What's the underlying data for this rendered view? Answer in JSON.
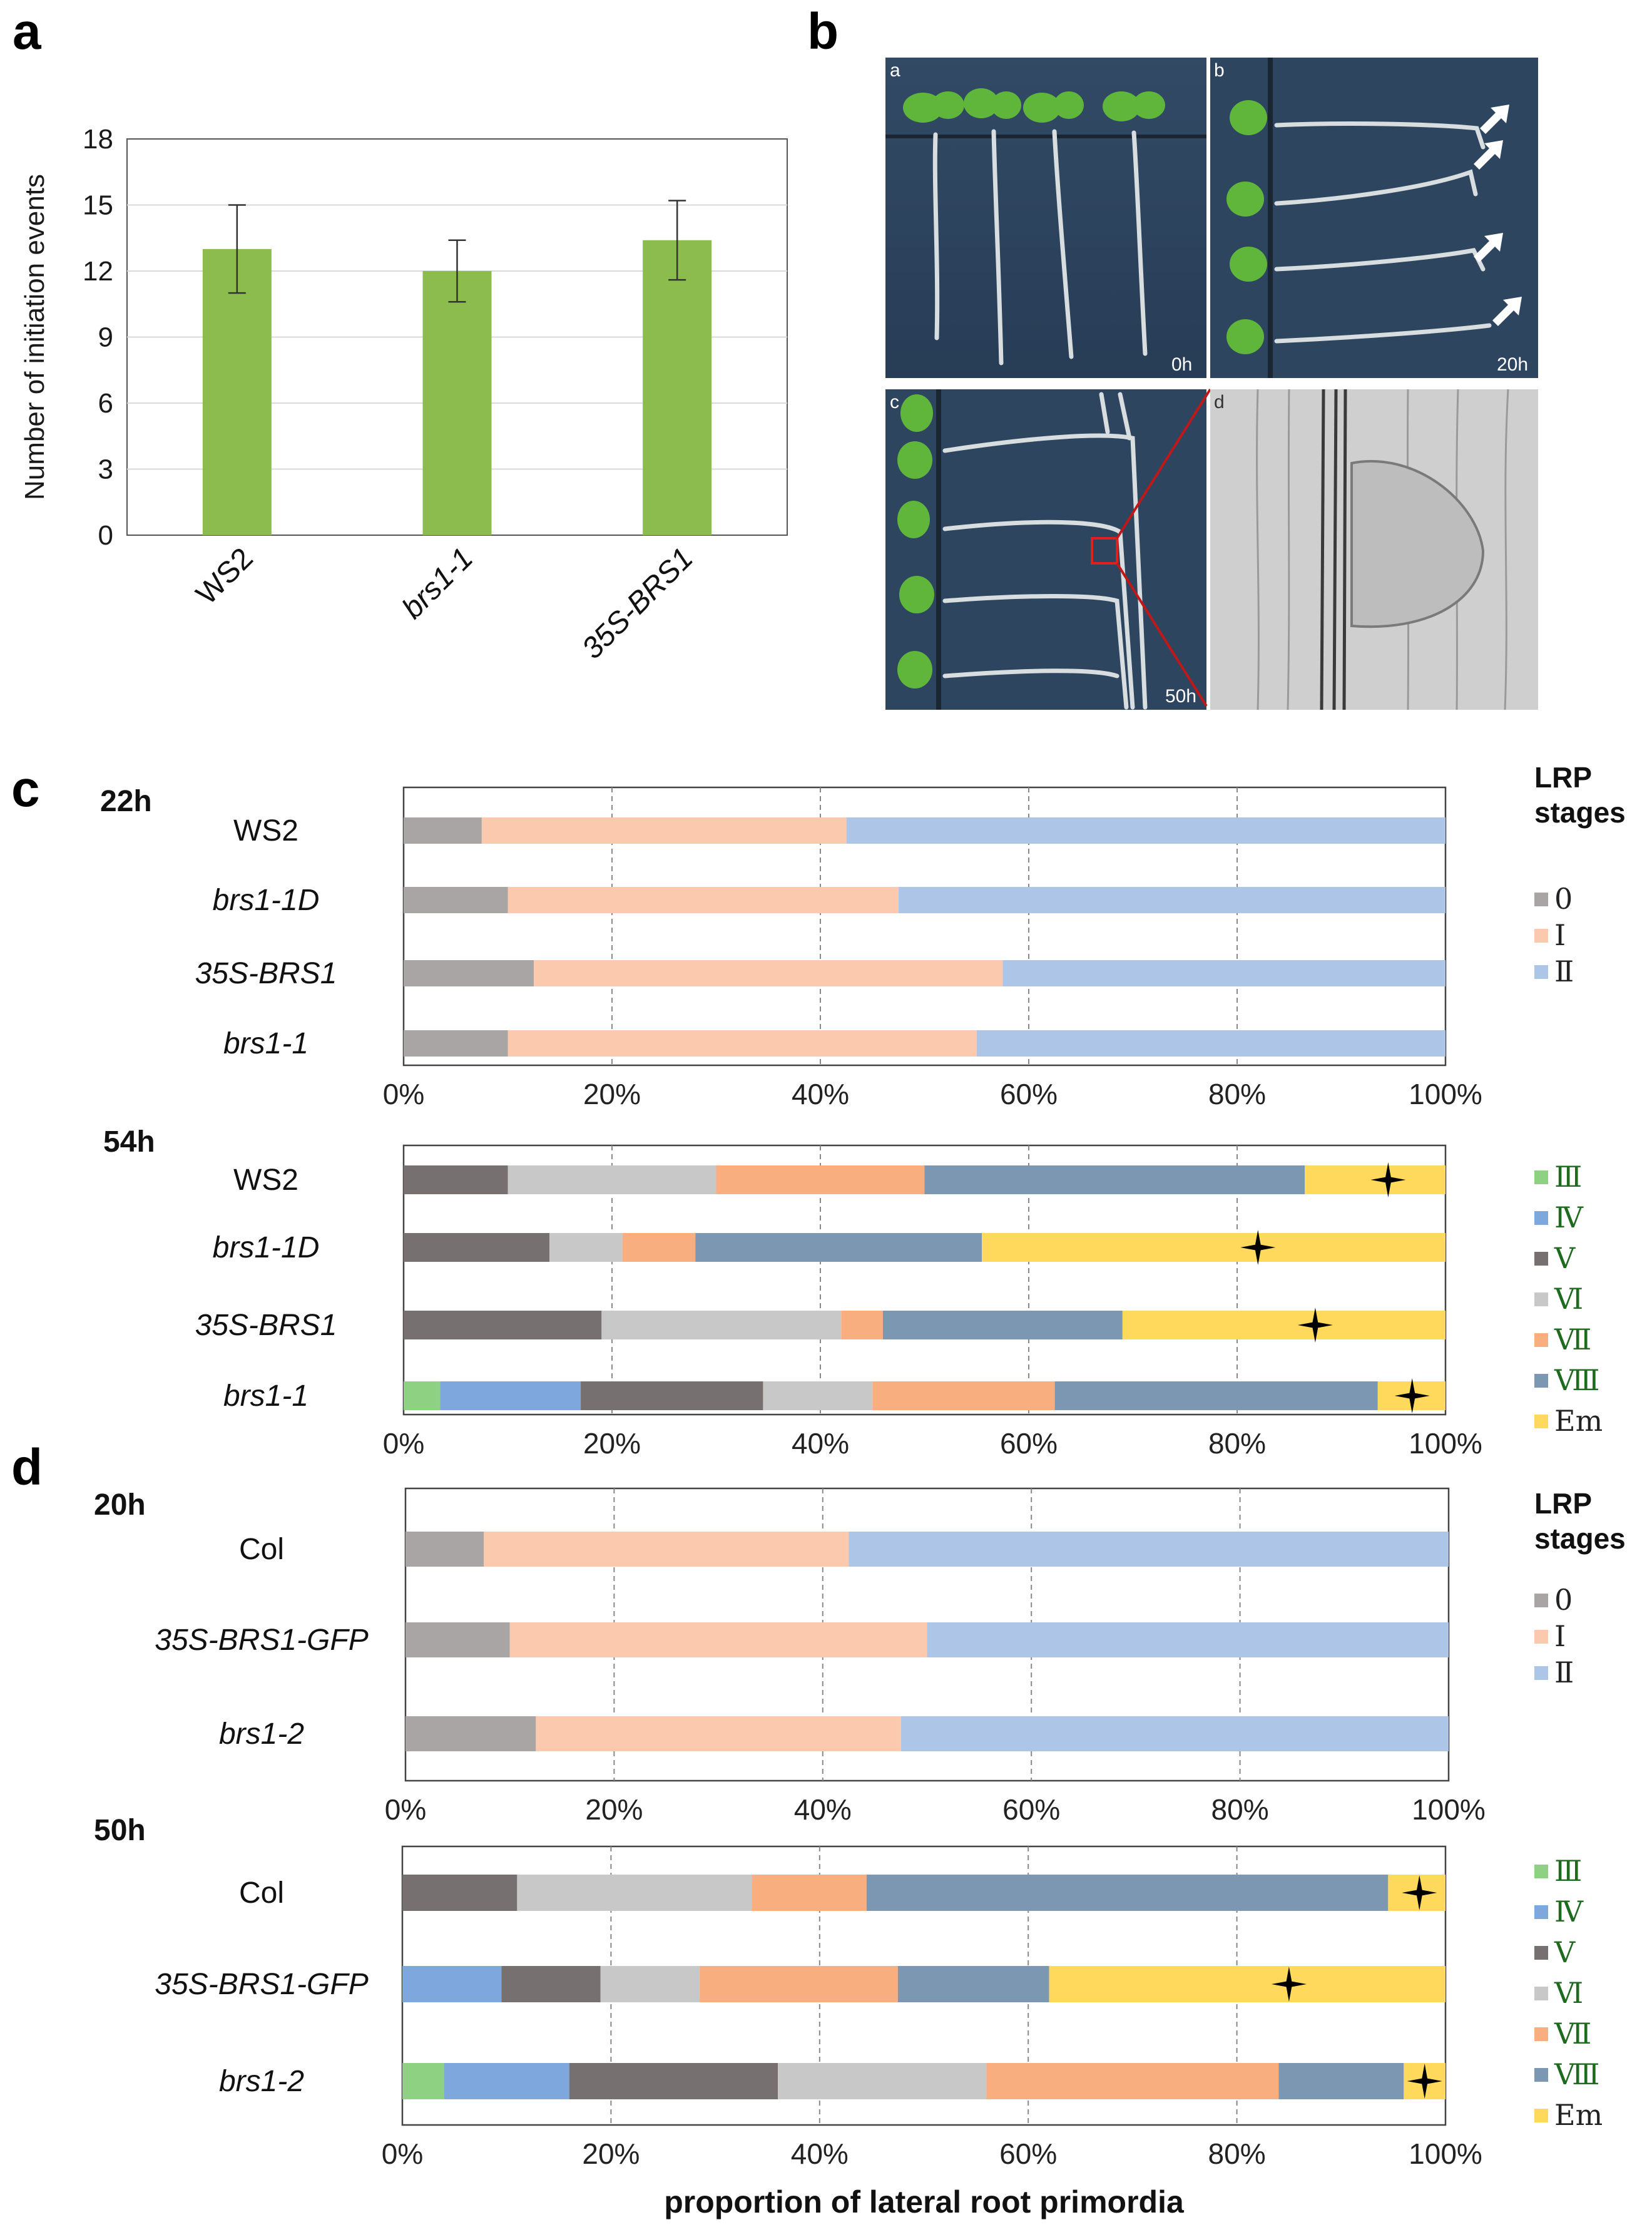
{
  "panel_labels": {
    "a": "a",
    "b": "b",
    "c": "c",
    "d": "d"
  },
  "chart_data": [
    {
      "id": "panel-a",
      "type": "bar",
      "ylabel": "Number of initiation events",
      "ylim": [
        0,
        18
      ],
      "yticks": [
        "0",
        "3",
        "6",
        "9",
        "12",
        "15",
        "18"
      ],
      "categories": [
        "WS2",
        "brs1-1",
        "35S-BRS1"
      ],
      "values": [
        13.0,
        12.0,
        13.4
      ],
      "errors": [
        2.0,
        1.4,
        1.8
      ],
      "bar_color": "#8cbc4e",
      "grid": true
    },
    {
      "id": "panel-c-22h",
      "type": "bar",
      "orientation": "horizontal-stacked",
      "time_label": "22h",
      "categories": [
        "WS2",
        "brs1-1D",
        "35S-BRS1",
        "brs1-1"
      ],
      "italic": [
        false,
        true,
        true,
        true
      ],
      "stages": [
        "0",
        "I",
        "II"
      ],
      "series": [
        {
          "name": "0",
          "color": "#a9a5a4",
          "values": [
            7.5,
            10,
            12.5,
            10
          ]
        },
        {
          "name": "I",
          "color": "#fbc9ad",
          "values": [
            35,
            37.5,
            45,
            45
          ]
        },
        {
          "name": "II",
          "color": "#adc6e8",
          "values": [
            57.5,
            52.5,
            42.5,
            45
          ]
        }
      ],
      "xticks": [
        "0%",
        "20%",
        "40%",
        "60%",
        "80%",
        "100%"
      ],
      "legend_title": [
        "LRP",
        "stages"
      ],
      "legend": [
        "0",
        "Ⅰ",
        "Ⅱ"
      ]
    },
    {
      "id": "panel-c-54h",
      "type": "bar",
      "orientation": "horizontal-stacked",
      "time_label": "54h",
      "categories": [
        "WS2",
        "brs1-1D",
        "35S-BRS1",
        "brs1-1"
      ],
      "italic": [
        false,
        true,
        true,
        true
      ],
      "series": [
        {
          "name": "III",
          "color": "#8ed183",
          "values": [
            0,
            0,
            0,
            3.5
          ]
        },
        {
          "name": "IV",
          "color": "#7ea7dd",
          "values": [
            0,
            0,
            0,
            13.5
          ]
        },
        {
          "name": "V",
          "color": "#777071",
          "values": [
            10,
            14,
            19,
            17.5
          ]
        },
        {
          "name": "VI",
          "color": "#c8c8c8",
          "values": [
            20,
            7,
            23,
            10.5
          ]
        },
        {
          "name": "VII",
          "color": "#f9ae80",
          "values": [
            20,
            7,
            4,
            17.5
          ]
        },
        {
          "name": "VIII",
          "color": "#7c97b2",
          "values": [
            36.5,
            27.5,
            23,
            31
          ]
        },
        {
          "name": "Em",
          "color": "#ffd95b",
          "values": [
            13.5,
            44.5,
            31,
            6.5
          ]
        }
      ],
      "star_positions_pct": [
        94.5,
        82,
        87.5,
        96.8
      ],
      "xticks": [
        "0%",
        "20%",
        "40%",
        "60%",
        "80%",
        "100%"
      ],
      "legend": [
        "Ⅲ",
        "Ⅳ",
        "Ⅴ",
        "Ⅵ",
        "Ⅶ",
        "Ⅷ",
        "Em"
      ]
    },
    {
      "id": "panel-d-20h",
      "type": "bar",
      "orientation": "horizontal-stacked",
      "time_label": "20h",
      "categories": [
        "Col",
        "35S-BRS1-GFP",
        "brs1-2"
      ],
      "italic": [
        false,
        true,
        true
      ],
      "series": [
        {
          "name": "0",
          "color": "#a9a5a4",
          "values": [
            7.5,
            10,
            12.5
          ]
        },
        {
          "name": "I",
          "color": "#fbc9ad",
          "values": [
            35,
            40,
            35
          ]
        },
        {
          "name": "II",
          "color": "#adc6e8",
          "values": [
            57.5,
            50,
            52.5
          ]
        }
      ],
      "xticks": [
        "0%",
        "20%",
        "40%",
        "60%",
        "80%",
        "100%"
      ],
      "legend_title": [
        "LRP",
        "stages"
      ],
      "legend": [
        "0",
        "Ⅰ",
        "Ⅱ"
      ]
    },
    {
      "id": "panel-d-50h",
      "type": "bar",
      "orientation": "horizontal-stacked",
      "time_label": "50h",
      "categories": [
        "Col",
        "35S-BRS1-GFP",
        "brs1-2"
      ],
      "italic": [
        false,
        true,
        true
      ],
      "series": [
        {
          "name": "III",
          "color": "#8ed183",
          "values": [
            0,
            0,
            4
          ]
        },
        {
          "name": "IV",
          "color": "#7ea7dd",
          "values": [
            0,
            9.5,
            12
          ]
        },
        {
          "name": "V",
          "color": "#777071",
          "values": [
            11,
            9.5,
            20
          ]
        },
        {
          "name": "VI",
          "color": "#c8c8c8",
          "values": [
            22.5,
            9.5,
            20
          ]
        },
        {
          "name": "VII",
          "color": "#f9ae80",
          "values": [
            11,
            19,
            28
          ]
        },
        {
          "name": "VIII",
          "color": "#7c97b2",
          "values": [
            50,
            14.5,
            12
          ]
        },
        {
          "name": "Em",
          "color": "#ffd95b",
          "values": [
            5.5,
            38,
            4
          ]
        }
      ],
      "star_positions_pct": [
        97.5,
        85,
        98
      ],
      "xticks": [
        "0%",
        "20%",
        "40%",
        "60%",
        "80%",
        "100%"
      ],
      "xlabel": "proportion of lateral root primordia",
      "legend": [
        "Ⅲ",
        "Ⅳ",
        "Ⅴ",
        "Ⅵ",
        "Ⅶ",
        "Ⅷ",
        "Em"
      ]
    }
  ],
  "panel_b": {
    "subpanels": [
      {
        "letter": "a",
        "time": "0h"
      },
      {
        "letter": "b",
        "time": "20h"
      },
      {
        "letter": "c",
        "time": "50h"
      },
      {
        "letter": "d",
        "time": ""
      }
    ]
  }
}
